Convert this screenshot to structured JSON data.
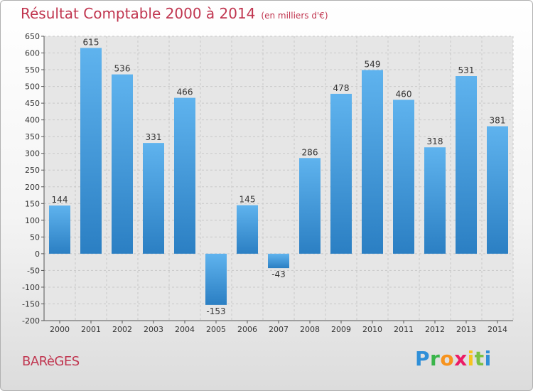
{
  "chart_data": {
    "type": "bar",
    "title": "Résultat Comptable 2000 à 2014",
    "subtitle": "(en milliers d'€)",
    "categories": [
      "2000",
      "2001",
      "2002",
      "2003",
      "2004",
      "2005",
      "2006",
      "2007",
      "2008",
      "2009",
      "2010",
      "2011",
      "2012",
      "2013",
      "2014"
    ],
    "values": [
      144,
      615,
      536,
      331,
      466,
      -153,
      145,
      -43,
      286,
      478,
      549,
      460,
      318,
      531,
      381
    ],
    "ylim": [
      -200,
      650
    ],
    "yticks": [
      650,
      600,
      550,
      500,
      450,
      400,
      350,
      300,
      250,
      200,
      150,
      100,
      50,
      0,
      -50,
      -100,
      -150,
      -200
    ],
    "grid": true,
    "xlabel": "",
    "ylabel": ""
  },
  "commune": "BARèGES",
  "brand": {
    "letters": [
      "P",
      "r",
      "o",
      "x",
      "i",
      "t",
      "i"
    ]
  },
  "colors": {
    "bar_light": "#5fb3ee",
    "bar_dark": "#2b7fc3",
    "title": "#c0354f",
    "grid": "#c8c8c8"
  }
}
